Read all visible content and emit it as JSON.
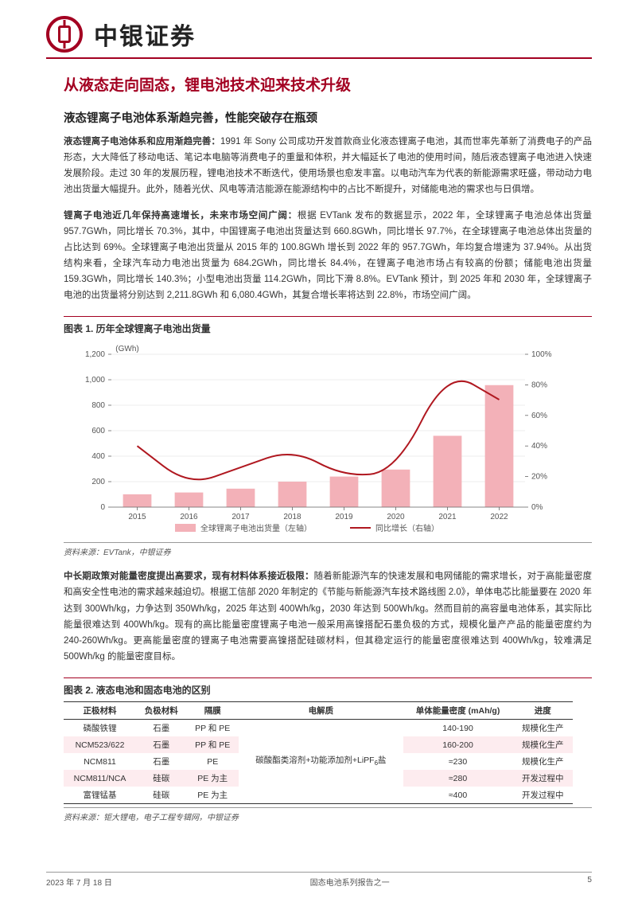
{
  "header": {
    "brand": "中银证券"
  },
  "title": "从液态走向固态，锂电池技术迎来技术升级",
  "section1": {
    "heading": "液态锂离子电池体系渐趋完善，性能突破存在瓶颈",
    "para1_lead": "液态锂离子电池体系和应用渐趋完善：",
    "para1_body": "1991 年 Sony 公司成功开发首款商业化液态锂离子电池，其而世率先革新了消费电子的产品形态，大大降低了移动电话、笔记本电脑等消费电子的重量和体积，并大幅延长了电池的使用时间，随后液态锂离子电池进入快速发展阶段。走过 30 年的发展历程，锂电池技术不断迭代，使用场景也愈发丰富。以电动汽车为代表的新能源需求旺盛，带动动力电池出货量大幅提升。此外，随着光伏、风电等清洁能源在能源结构中的占比不断提升，对储能电池的需求也与日俱增。",
    "para2_lead": "锂离子电池近几年保持高速增长，未来市场空间广阔：",
    "para2_body": "根据 EVTank 发布的数据显示，2022 年，全球锂离子电池总体出货量 957.7GWh，同比增长 70.3%，其中，中国锂离子电池出货量达到 660.8GWh，同比增长 97.7%，在全球锂离子电池总体出货量的占比达到 69%。全球锂离子电池出货量从 2015 年的 100.8GWh 增长到 2022 年的 957.7GWh，年均复合增速为 37.94%。从出货结构来看，全球汽车动力电池出货量为 684.2GWh，同比增长 84.4%，在锂离子电池市场占有较高的份额；储能电池出货量 159.3GWh，同比增长 140.3%；小型电池出货量 114.2GWh，同比下滑 8.8%。EVTank 预计，到 2025 年和 2030 年，全球锂离子电池的出货量将分别达到 2,211.8GWh 和 6,080.4GWh，其复合增长率将达到 22.8%，市场空间广阔。"
  },
  "chart1": {
    "title": "图表 1. 历年全球锂离子电池出货量",
    "type": "bar+line",
    "y_unit": "(GWh)",
    "categories": [
      "2015",
      "2016",
      "2017",
      "2018",
      "2019",
      "2020",
      "2021",
      "2022"
    ],
    "bar_values": [
      100.8,
      115,
      145,
      200,
      240,
      295,
      560,
      957.7
    ],
    "line_values": [
      40,
      14,
      26,
      38,
      20,
      23,
      90,
      70.3
    ],
    "y1_lim": [
      0,
      1200
    ],
    "y1_step": 200,
    "y2_lim": [
      0,
      100
    ],
    "y2_step": 20,
    "bar_color": "#f3b1b8",
    "line_color": "#b01820",
    "grid_color": "#d9d9d9",
    "axis_color": "#666666",
    "text_color": "#555555",
    "legend_bar": "全球锂离子电池出货量（左轴）",
    "legend_line": "同比增长（右轴）",
    "source": "资料来源：EVTank，中银证券"
  },
  "section2": {
    "para_lead": "中长期政策对能量密度提出高要求，现有材料体系接近极限：",
    "para_body": "随着新能源汽车的快速发展和电网储能的需求增长，对于高能量密度和高安全性电池的需求越来越迫切。根据工信部 2020 年制定的《节能与新能源汽车技术路线图 2.0》，单体电芯比能量要在 2020 年达到 300Wh/kg，力争达到 350Wh/kg，2025 年达到 400Wh/kg，2030 年达到 500Wh/kg。然而目前的高容量电池体系，其实际比能量很难达到 400Wh/kg。现有的高比能量密度锂离子电池一般采用高镍搭配石墨负极的方式，规模化量产产品的能量密度约为 240-260Wh/kg。更高能量密度的锂离子电池需要高镍搭配硅碳材料，但其稳定运行的能量密度很难达到 400Wh/kg，较难满足 500Wh/kg 的能量密度目标。"
  },
  "table1": {
    "title": "图表 2. 液态电池和固态电池的区别",
    "columns": [
      "正极材料",
      "负极材料",
      "隔膜",
      "电解质",
      "单体能量密度 (mAh/g)",
      "进度"
    ],
    "electrolyte_merged": "碳酸酯类溶剂+功能添加剂+LiPF₆盐",
    "rows": [
      [
        "磷酸铁锂",
        "石墨",
        "PP 和 PE",
        "",
        "140-190",
        "规模化生产"
      ],
      [
        "NCM523/622",
        "石墨",
        "PP 和 PE",
        "",
        "160-200",
        "规模化生产"
      ],
      [
        "NCM811",
        "石墨",
        "PE",
        "",
        "≈230",
        "规模化生产"
      ],
      [
        "NCM811/NCA",
        "硅碳",
        "PE 为主",
        "",
        "≈280",
        "开发过程中"
      ],
      [
        "富锂锰基",
        "硅碳",
        "PE 为主",
        "",
        "≈400",
        "开发过程中"
      ]
    ],
    "source": "资料来源：钜大锂电，电子工程专辑网，中银证券"
  },
  "footer": {
    "date": "2023 年 7 月 18 日",
    "center": "固态电池系列报告之一",
    "page": "5"
  },
  "colors": {
    "brand_red": "#a30021",
    "row_pink": "#fdecef"
  }
}
